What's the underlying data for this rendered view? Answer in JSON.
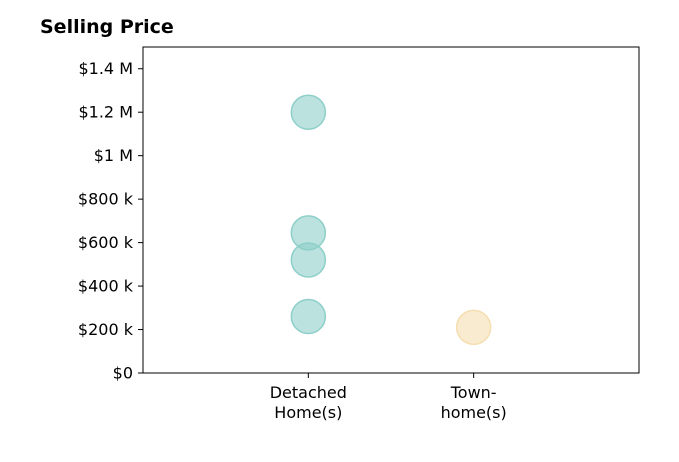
{
  "chart_data": {
    "type": "scatter",
    "title": "Selling Price",
    "xlabel": "",
    "ylabel": "",
    "categories": [
      {
        "line1": "Detached",
        "line2": "Home(s)"
      },
      {
        "line1": "Town-",
        "line2": "home(s)"
      }
    ],
    "xlim": [
      -1,
      2
    ],
    "ylim": [
      0,
      1500000
    ],
    "y_ticks": [
      {
        "value": 0,
        "label": "$0"
      },
      {
        "value": 200000,
        "label": "$200 k"
      },
      {
        "value": 400000,
        "label": "$400 k"
      },
      {
        "value": 600000,
        "label": "$600 k"
      },
      {
        "value": 800000,
        "label": "$800 k"
      },
      {
        "value": 1000000,
        "label": "$1 M"
      },
      {
        "value": 1200000,
        "label": "$1.2 M"
      },
      {
        "value": 1400000,
        "label": "$1.4 M"
      }
    ],
    "points": [
      {
        "category": 0,
        "y": 1200000,
        "color": "#8ecfc9"
      },
      {
        "category": 0,
        "y": 645000,
        "color": "#8ecfc9"
      },
      {
        "category": 0,
        "y": 520000,
        "color": "#8ecfc9"
      },
      {
        "category": 0,
        "y": 260000,
        "color": "#8ecfc9"
      },
      {
        "category": 1,
        "y": 210000,
        "color": "#f5deb0"
      }
    ],
    "grid": false,
    "point_opacity": 0.6
  }
}
